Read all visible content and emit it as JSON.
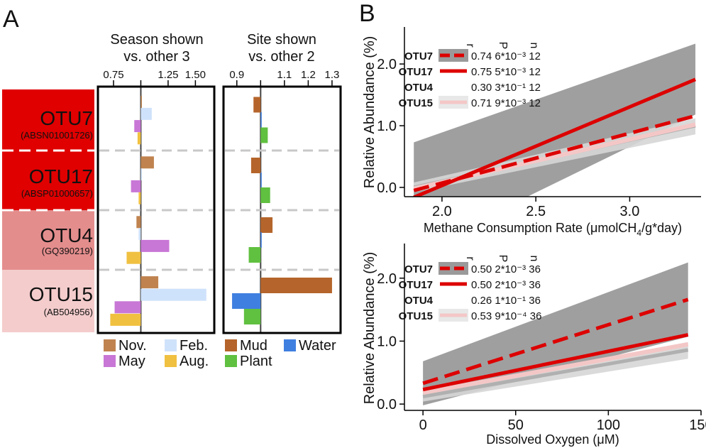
{
  "panel_a": {
    "label": "A",
    "otus": [
      {
        "name": "OTU7",
        "accession": "(ABSN01001726)",
        "color": "#e00000"
      },
      {
        "name": "OTU17",
        "accession": "(ABSP01000657)",
        "color": "#e00000"
      },
      {
        "name": "OTU4",
        "accession": "(GQ390219)",
        "color": "#e48d8d"
      },
      {
        "name": "OTU15",
        "accession": "(AB504956)",
        "color": "#f4cccc"
      }
    ],
    "season_chart": {
      "title_line1": "Season shown",
      "title_line2": "vs. other 3",
      "tick_labels": [
        "0.75",
        "1.25",
        "1.50"
      ],
      "legend": [
        {
          "name": "Nov.",
          "color": "#c0834f"
        },
        {
          "name": "Feb.",
          "color": "#cfe2fb"
        },
        {
          "name": "May",
          "color": "#c877d6"
        },
        {
          "name": "Aug.",
          "color": "#f0c040"
        }
      ]
    },
    "site_chart": {
      "title_line1": "Site shown",
      "title_line2": "vs. other 2",
      "tick_labels": [
        "0.9",
        "1.1",
        "1.2",
        "1.3"
      ],
      "legend": [
        {
          "name": "Mud",
          "color": "#b5652b"
        },
        {
          "name": "Water",
          "color": "#3f7fe0"
        },
        {
          "name": "Plant",
          "color": "#60c040"
        }
      ]
    }
  },
  "panel_b": {
    "label": "B",
    "ylabel": "Relative Abundance (%)",
    "header_r": "r",
    "header_p": "P",
    "header_n": "n",
    "top": {
      "xlabel_main": "Methane Consumption Rate (μmolCH",
      "xlabel_sub": "4",
      "xlabel_tail": "/g*day)",
      "xticks": [
        "2.0",
        "2.5",
        "3.0"
      ],
      "yticks": [
        "0.0",
        "1.0",
        "2.0"
      ],
      "legend": [
        {
          "name": "OTU7",
          "stats": "0.74 6*10⁻³ 12",
          "muted": false
        },
        {
          "name": "OTU17",
          "stats": "0.75 5*10⁻³ 12",
          "muted": false
        },
        {
          "name": "OTU4",
          "stats": "0.30 3*10⁻¹ 12",
          "muted": true
        },
        {
          "name": "OTU15",
          "stats": "0.71 9*10⁻³ 12",
          "muted": false
        }
      ]
    },
    "bottom": {
      "xlabel": "Dissolved Oxygen (μM)",
      "xticks": [
        "0",
        "50",
        "100",
        "150"
      ],
      "yticks": [
        "0.0",
        "1.0",
        "2.0"
      ],
      "legend": [
        {
          "name": "OTU7",
          "stats": "0.50 2*10⁻³ 36",
          "muted": false
        },
        {
          "name": "OTU17",
          "stats": "0.50 2*10⁻³ 36",
          "muted": false
        },
        {
          "name": "OTU4",
          "stats": "0.26 1*10⁻¹ 36",
          "muted": true
        },
        {
          "name": "OTU15",
          "stats": "0.53 9*10⁻⁴ 36",
          "muted": false
        }
      ]
    }
  },
  "chart_data": [
    {
      "type": "bar",
      "orientation": "horizontal",
      "title": "Season shown vs. other 3",
      "categories": [
        "OTU7",
        "OTU17",
        "OTU4",
        "OTU15"
      ],
      "series": [
        {
          "name": "Nov.",
          "values": [
            1.0,
            1.12,
            0.96,
            1.16
          ]
        },
        {
          "name": "Feb.",
          "values": [
            1.1,
            1.0,
            0.98,
            1.6
          ]
        },
        {
          "name": "May",
          "values": [
            0.94,
            0.91,
            1.26,
            0.76
          ]
        },
        {
          "name": "Aug.",
          "values": [
            0.97,
            0.98,
            0.87,
            0.72
          ]
        }
      ],
      "reference": 1.0,
      "xlim": [
        0.62,
        1.66
      ]
    },
    {
      "type": "bar",
      "orientation": "horizontal",
      "title": "Site shown vs. other 2",
      "categories": [
        "OTU7",
        "OTU17",
        "OTU4",
        "OTU15"
      ],
      "series": [
        {
          "name": "Mud",
          "values": [
            0.97,
            0.96,
            1.05,
            1.3
          ]
        },
        {
          "name": "Plant",
          "values": [
            1.03,
            1.04,
            0.95,
            0.93
          ]
        },
        {
          "name": "Water",
          "values": [
            1.0,
            1.0,
            1.0,
            0.88
          ]
        }
      ],
      "reference": 1.0,
      "xlim": [
        0.85,
        1.33
      ]
    },
    {
      "type": "line",
      "title": "",
      "xlabel": "Methane Consumption Rate (μmolCH4/g*day)",
      "ylabel": "Relative Abundance (%)",
      "xlim": [
        1.8,
        3.38
      ],
      "ylim": [
        -0.15,
        2.6
      ],
      "series": [
        {
          "name": "OTU7",
          "style": "dashed",
          "color": "#dd0000",
          "x": [
            1.85,
            3.35
          ],
          "y": [
            -0.05,
            1.16
          ]
        },
        {
          "name": "OTU17",
          "style": "solid",
          "color": "#dd0000",
          "x": [
            1.85,
            3.35
          ],
          "y": [
            -0.16,
            1.75
          ]
        },
        {
          "name": "OTU4",
          "style": "solid",
          "color": "#b0b0b0",
          "x": [
            1.85,
            3.35
          ],
          "y": [
            0.0,
            1.0
          ]
        },
        {
          "name": "OTU15",
          "style": "solid",
          "color": "#f4c7c7",
          "x": [
            1.85,
            3.35
          ],
          "y": [
            -0.02,
            1.02
          ]
        }
      ],
      "band_OTU17": {
        "x": [
          1.85,
          3.35
        ],
        "upper": [
          0.73,
          2.33
        ],
        "lower": [
          -1.05,
          1.18
        ]
      }
    },
    {
      "type": "line",
      "title": "",
      "xlabel": "Dissolved Oxygen (μM)",
      "ylabel": "Relative Abundance (%)",
      "xlim": [
        -10,
        150
      ],
      "ylim": [
        -0.1,
        2.55
      ],
      "series": [
        {
          "name": "OTU7",
          "style": "dashed",
          "color": "#dd0000",
          "x": [
            0,
            143
          ],
          "y": [
            0.33,
            1.66
          ]
        },
        {
          "name": "OTU17",
          "style": "solid",
          "color": "#dd0000",
          "x": [
            0,
            143
          ],
          "y": [
            0.23,
            1.1
          ]
        },
        {
          "name": "OTU4",
          "style": "solid",
          "color": "#b0b0b0",
          "x": [
            0,
            143
          ],
          "y": [
            0.12,
            0.86
          ]
        },
        {
          "name": "OTU15",
          "style": "solid",
          "color": "#f4c7c7",
          "x": [
            0,
            143
          ],
          "y": [
            0.18,
            0.95
          ]
        }
      ],
      "band_OTU7": {
        "x": [
          0,
          143
        ],
        "upper": [
          0.68,
          2.25
        ],
        "lower": [
          -0.02,
          1.07
        ]
      }
    }
  ]
}
